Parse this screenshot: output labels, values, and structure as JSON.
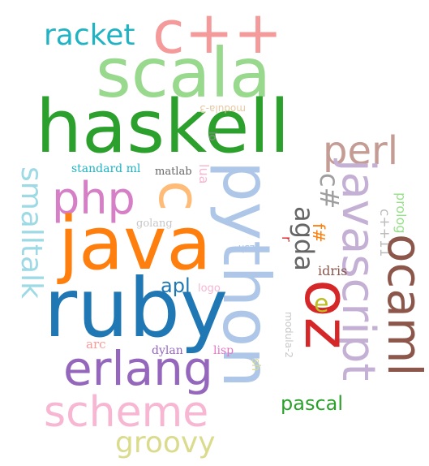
{
  "words": [
    {
      "text": "c++",
      "color": "#f49a9a",
      "rot": 0
    },
    {
      "text": "racket",
      "color": "#1fb3c3",
      "rot": 0
    },
    {
      "text": "scala",
      "color": "#98d98e",
      "rot": 0
    },
    {
      "text": "haskell",
      "color": "#2ca02c",
      "rot": 0
    },
    {
      "text": "modula-3",
      "color": "#e7c9a5",
      "rot": 180
    },
    {
      "text": "perl",
      "color": "#c49c94",
      "rot": 0
    },
    {
      "text": "io",
      "color": "#8c8c8c",
      "rot": 90
    },
    {
      "text": "standard ml",
      "color": "#1fb3c3",
      "rot": 0
    },
    {
      "text": "matlab",
      "color": "#666666",
      "rot": 0
    },
    {
      "text": "lua",
      "color": "#f7b6d2",
      "rot": 90
    },
    {
      "text": "smalltalk",
      "color": "#9edae5",
      "rot": 90
    },
    {
      "text": "php",
      "color": "#d67fc7",
      "rot": 0
    },
    {
      "text": "c",
      "color": "#ffbb78",
      "rot": 90
    },
    {
      "text": "python",
      "color": "#aec7e8",
      "rot": 90
    },
    {
      "text": "javascript",
      "color": "#c5b0d5",
      "rot": 90
    },
    {
      "text": "c#",
      "color": "#9e9e9e",
      "rot": 90
    },
    {
      "text": "prolog",
      "color": "#98df8a",
      "rot": 90
    },
    {
      "text": "c++11",
      "color": "#bcbcbc",
      "rot": 90
    },
    {
      "text": "agda",
      "color": "#666666",
      "rot": 90
    },
    {
      "text": "golang",
      "color": "#c7c7c7",
      "rot": 0
    },
    {
      "text": "java",
      "color": "#ff7f0e",
      "rot": 0
    },
    {
      "text": "f#",
      "color": "#ff7f0e",
      "rot": 90
    },
    {
      "text": "r",
      "color": "#d62728",
      "rot": 90
    },
    {
      "text": "zsh",
      "color": "#aec7e8",
      "rot": 180
    },
    {
      "text": "idris",
      "color": "#8c564b",
      "rot": 0
    },
    {
      "text": "ocaml",
      "color": "#8c564b",
      "rot": 90
    },
    {
      "text": "apl",
      "color": "#1f77b4",
      "rot": 0
    },
    {
      "text": "logo",
      "color": "#f7b6d2",
      "rot": 0
    },
    {
      "text": "oz",
      "color": "#d62728",
      "rot": 90
    },
    {
      "text": "e",
      "color": "#bcbd22",
      "rot": 0
    },
    {
      "text": "ruby",
      "color": "#1f77b4",
      "rot": 0
    },
    {
      "text": "modula-2",
      "color": "#c7c7c7",
      "rot": 90
    },
    {
      "text": "arc",
      "color": "#ff9896",
      "rot": 0
    },
    {
      "text": "dylan",
      "color": "#9467bd",
      "rot": 0
    },
    {
      "text": "lisp",
      "color": "#e377c2",
      "rot": 0
    },
    {
      "text": "erlang",
      "color": "#9467bd",
      "rot": 0
    },
    {
      "text": "sh",
      "color": "#dbdb8d",
      "rot": 90
    },
    {
      "text": "pascal",
      "color": "#2ca02c",
      "rot": 0
    },
    {
      "text": "scheme",
      "color": "#f7b6d2",
      "rot": 0
    },
    {
      "text": "groovy",
      "color": "#dbdb8d",
      "rot": 0
    }
  ]
}
